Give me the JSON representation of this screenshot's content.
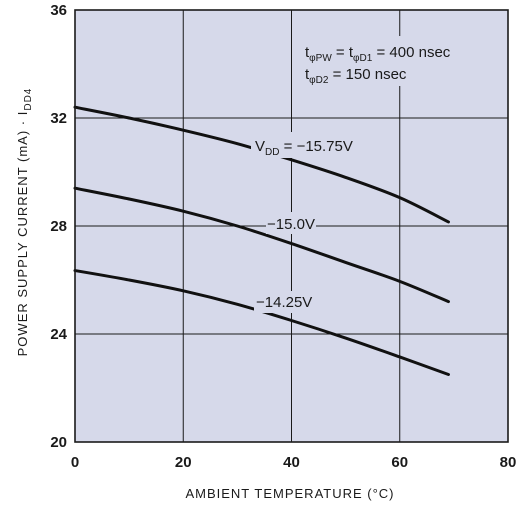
{
  "chart_data": {
    "type": "line",
    "xlabel": "AMBIENT TEMPERATURE (°C)",
    "ylabel": "POWER SUPPLY CURRENT (mA) · I",
    "ylabel_sub": "DD4",
    "xlim": [
      0,
      80
    ],
    "ylim": [
      20,
      36
    ],
    "x_ticks": [
      "0",
      "20",
      "40",
      "60",
      "80"
    ],
    "y_ticks": [
      "20",
      "24",
      "28",
      "32",
      "36"
    ],
    "grid": true,
    "conditions": {
      "line1": {
        "t1": "t",
        "s1": "φPW",
        "t2": " = t",
        "s2": "φD1",
        "t3": " = 400 nsec"
      },
      "line2": {
        "t1": "t",
        "s1": "φD2",
        "t2": " = 150 nsec"
      }
    },
    "series": [
      {
        "name": "VDD = −15.75V",
        "label_main": "V",
        "label_sub": "DD",
        "label_rest": " = −15.75V",
        "x": [
          0,
          10,
          20,
          30,
          40,
          50,
          60,
          69
        ],
        "y": [
          32.4,
          32.0,
          31.55,
          31.05,
          30.45,
          29.8,
          29.05,
          28.15
        ]
      },
      {
        "name": "−15.0V",
        "label_main": "−15.0V",
        "x": [
          0,
          10,
          20,
          30,
          40,
          50,
          60,
          69
        ],
        "y": [
          29.4,
          29.0,
          28.55,
          28.0,
          27.35,
          26.65,
          25.95,
          25.2
        ]
      },
      {
        "name": "−14.25V",
        "label_main": "−14.25V",
        "x": [
          0,
          10,
          20,
          30,
          40,
          50,
          60,
          69
        ],
        "y": [
          26.35,
          26.0,
          25.6,
          25.1,
          24.5,
          23.85,
          23.15,
          22.5
        ]
      }
    ],
    "colors": {
      "plot_bg": "#d6d9ea",
      "line": "#111111",
      "grid": "#1a1a1a"
    }
  }
}
